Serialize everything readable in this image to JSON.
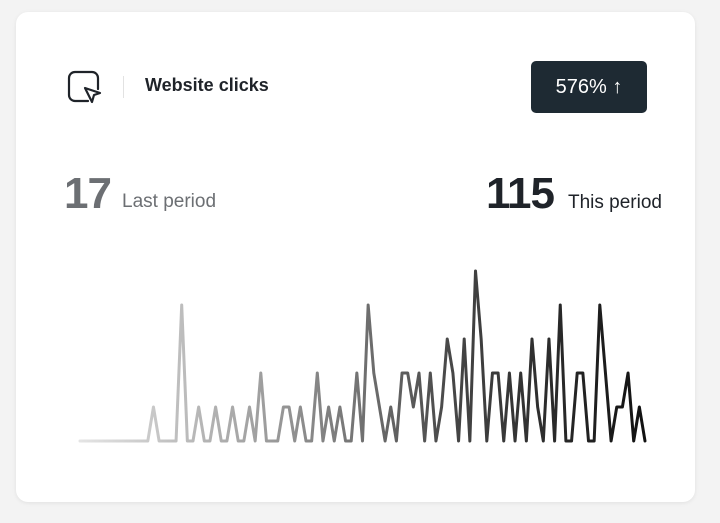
{
  "header": {
    "title": "Website clicks",
    "badge": "576% ↑"
  },
  "last_period": {
    "value": 17,
    "label": "Last period"
  },
  "this_period": {
    "value": 115,
    "label": "This period"
  },
  "chart_data": {
    "type": "line",
    "values": [
      0,
      0,
      0,
      0,
      0,
      0,
      0,
      0,
      0,
      0,
      0,
      0,
      0,
      1,
      0,
      0,
      0,
      0,
      4,
      0,
      0,
      1,
      0,
      0,
      1,
      0,
      0,
      1,
      0,
      0,
      1,
      0,
      2,
      0,
      0,
      0,
      1,
      1,
      0,
      1,
      0,
      0,
      2,
      0,
      1,
      0,
      1,
      0,
      0,
      2,
      0,
      4,
      2,
      1,
      0,
      1,
      0,
      2,
      2,
      1,
      2,
      0,
      2,
      0,
      1,
      3,
      2,
      0,
      3,
      0,
      5,
      3,
      0,
      2,
      2,
      0,
      2,
      0,
      2,
      0,
      3,
      1,
      0,
      3,
      0,
      4,
      0,
      0,
      2,
      2,
      0,
      0,
      4,
      2,
      0,
      1,
      1,
      2,
      0,
      1,
      0
    ],
    "ylim": [
      0,
      5
    ],
    "colors": [
      "#e4e4e4",
      "#9c9c9c",
      "#454545",
      "#111111"
    ]
  }
}
